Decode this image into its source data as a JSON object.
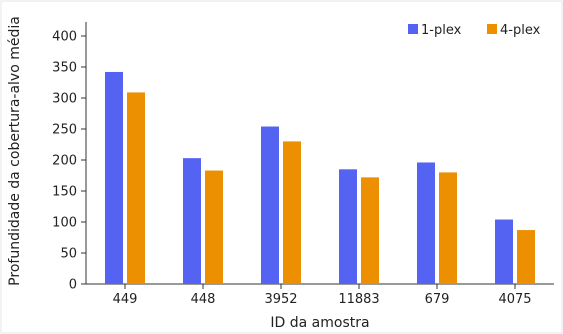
{
  "chart_data": {
    "type": "bar",
    "categories": [
      "449",
      "448",
      "3952",
      "11883",
      "679",
      "4075"
    ],
    "series": [
      {
        "name": "1-plex",
        "values": [
          342,
          203,
          254,
          185,
          196,
          104
        ],
        "color": "#5563f3"
      },
      {
        "name": "4-plex",
        "values": [
          309,
          183,
          230,
          172,
          180,
          87
        ],
        "color": "#ec8f00"
      }
    ],
    "xlabel": "ID da amostra",
    "ylabel": "Profundidade da cobertura-alvo média",
    "ylim": [
      0,
      400
    ],
    "yticks": [
      0,
      50,
      100,
      150,
      200,
      250,
      300,
      350,
      400
    ],
    "legend": "top-right",
    "grid": false
  }
}
